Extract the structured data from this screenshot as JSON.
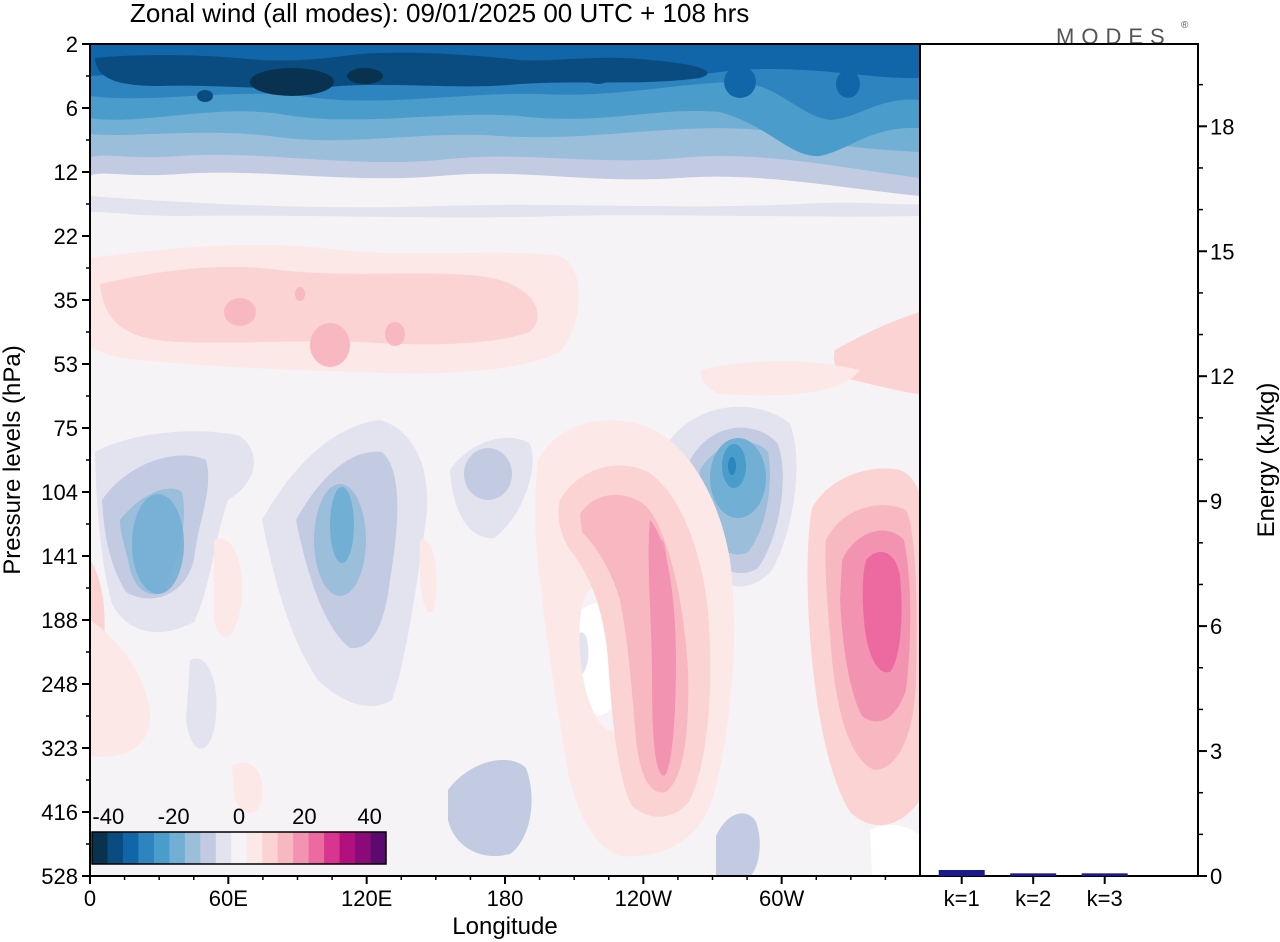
{
  "chart_data": [
    {
      "type": "heatmap",
      "title": "Zonal wind (all modes):  09/01/2025  00 UTC  + 108 hrs",
      "xlabel": "Longitude",
      "ylabel": "Pressure levels (hPa)",
      "x_ticks": [
        "0",
        "60E",
        "120E",
        "180",
        "120W",
        "60W"
      ],
      "y_ticks": [
        "2",
        "6",
        "12",
        "22",
        "35",
        "53",
        "75",
        "104",
        "141",
        "188",
        "248",
        "323",
        "416",
        "528"
      ],
      "colorbar": {
        "ticks": [
          "-40",
          "-20",
          "0",
          "20",
          "40"
        ],
        "range": [
          -45,
          45
        ],
        "step": 5,
        "colors": [
          "#08324f",
          "#0a4c80",
          "#1066a8",
          "#2d84be",
          "#4a9ccb",
          "#72afd4",
          "#9bbedb",
          "#c3cbe2",
          "#e3e3ef",
          "#f6f3f6",
          "#fde8e8",
          "#fbd3d3",
          "#f8b8c2",
          "#f393b2",
          "#ec6aa0",
          "#d9348f",
          "#b30f7f",
          "#8a0a78",
          "#5b0a6e"
        ]
      },
      "regions": [
        {
          "lon": [
            0,
            360
          ],
          "levels": [
            "2",
            "6"
          ],
          "value_range": [
            -40,
            -20
          ]
        },
        {
          "lon": [
            0,
            360
          ],
          "levels": [
            "12",
            "22"
          ],
          "value_range": [
            -10,
            0
          ]
        },
        {
          "lon": [
            0,
            360
          ],
          "levels": [
            "22",
            "53"
          ],
          "value_range": [
            0,
            10
          ]
        },
        {
          "lon": [
            15,
            45
          ],
          "levels": [
            "104",
            "141"
          ],
          "value_range": [
            -15,
            -10
          ]
        },
        {
          "lon": [
            105,
            125
          ],
          "levels": [
            "104",
            "188"
          ],
          "value_range": [
            -15,
            -10
          ]
        },
        {
          "lon": [
            195,
            255
          ],
          "levels": [
            "104",
            "416"
          ],
          "value_range": [
            10,
            20
          ]
        },
        {
          "lon": [
            270,
            300
          ],
          "levels": [
            "75",
            "141"
          ],
          "value_range": [
            -25,
            -15
          ]
        },
        {
          "lon": [
            320,
            360
          ],
          "levels": [
            "104",
            "323"
          ],
          "value_range": [
            15,
            25
          ]
        }
      ]
    },
    {
      "type": "bar",
      "ylabel": "Energy (kJ/kg)",
      "categories": [
        "k=1",
        "k=2",
        "k=3"
      ],
      "values": [
        0.12,
        0.04,
        0.04
      ],
      "ylim": [
        0,
        20
      ],
      "y_ticks": [
        "0",
        "3",
        "6",
        "9",
        "12",
        "15",
        "18"
      ],
      "bar_color": "#1a1a8c"
    }
  ],
  "logo_text": "MODES"
}
